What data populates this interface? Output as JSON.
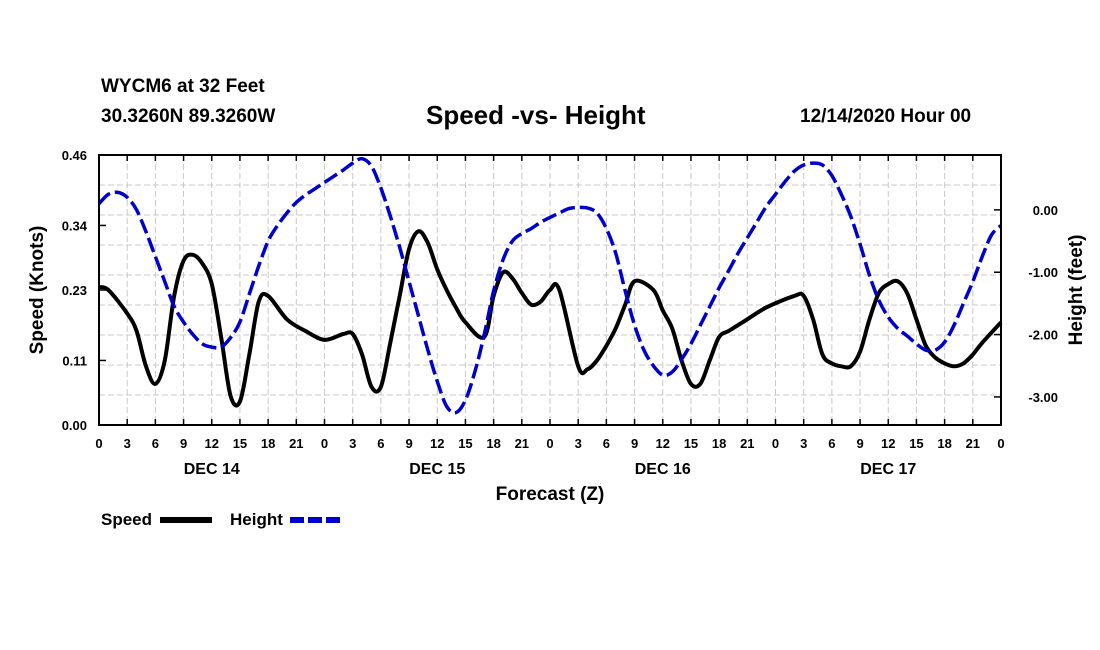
{
  "header": {
    "station": "WYCM6 at 32 Feet",
    "coords": "30.3260N 89.3260W",
    "title": "Speed -vs- Height",
    "datetime": "12/14/2020 Hour 00"
  },
  "chart_data": {
    "type": "line",
    "title": "Speed -vs- Height",
    "xlabel": "Forecast (Z)",
    "ylabel_left": "Speed (Knots)",
    "ylabel_right": "Height (feet)",
    "xlim": [
      0,
      96
    ],
    "ylim_left": [
      0,
      0.46
    ],
    "ylim_right": [
      -3.45,
      0.88
    ],
    "x_tick_labels": [
      "0",
      "3",
      "6",
      "9",
      "12",
      "15",
      "18",
      "21",
      "0",
      "3",
      "6",
      "9",
      "12",
      "15",
      "18",
      "21",
      "0",
      "3",
      "6",
      "9",
      "12",
      "15",
      "18",
      "21",
      "0",
      "3",
      "6",
      "9",
      "12",
      "15",
      "18",
      "21",
      "0"
    ],
    "day_labels": [
      {
        "label": "DEC 14",
        "x": 12
      },
      {
        "label": "DEC 15",
        "x": 36
      },
      {
        "label": "DEC 16",
        "x": 60
      },
      {
        "label": "DEC 17",
        "x": 84
      }
    ],
    "y_left_ticks": [
      "0.00",
      "0.11",
      "0.23",
      "0.34",
      "0.46"
    ],
    "y_left_tick_values": [
      0,
      0.11,
      0.23,
      0.34,
      0.46
    ],
    "y_right_ticks": [
      "-3.00",
      "-2.00",
      "-1.00",
      "0.00"
    ],
    "y_right_tick_values": [
      -3,
      -2,
      -1,
      0
    ],
    "grid": true,
    "legend_position": "bottom-left",
    "series": [
      {
        "name": "Speed",
        "axis": "left",
        "color": "#000000",
        "style": "solid",
        "x": [
          0,
          1,
          3,
          4,
          5,
          6,
          7,
          8,
          9,
          10,
          11,
          12,
          13,
          14,
          15,
          16,
          17,
          18,
          20,
          22,
          24,
          26,
          27,
          28,
          29,
          30,
          31,
          32,
          33,
          34,
          35,
          36,
          37,
          38,
          39,
          41,
          42,
          43,
          44,
          45,
          46,
          47,
          48,
          49,
          51,
          52,
          53,
          54,
          55,
          56,
          57,
          59,
          60,
          61,
          62,
          63,
          64,
          65,
          66,
          67,
          68,
          69,
          71,
          74,
          75,
          76,
          77,
          78,
          79,
          80,
          81,
          82,
          83,
          84,
          85,
          86,
          87,
          88,
          89,
          90,
          91,
          92,
          93,
          94,
          96
        ],
        "values": [
          0.235,
          0.23,
          0.19,
          0.16,
          0.1,
          0.07,
          0.11,
          0.22,
          0.28,
          0.29,
          0.275,
          0.24,
          0.15,
          0.05,
          0.04,
          0.12,
          0.21,
          0.22,
          0.18,
          0.16,
          0.145,
          0.155,
          0.155,
          0.12,
          0.065,
          0.065,
          0.14,
          0.22,
          0.3,
          0.33,
          0.31,
          0.265,
          0.23,
          0.2,
          0.175,
          0.15,
          0.22,
          0.26,
          0.25,
          0.225,
          0.205,
          0.21,
          0.23,
          0.23,
          0.1,
          0.095,
          0.11,
          0.135,
          0.165,
          0.205,
          0.245,
          0.23,
          0.195,
          0.165,
          0.11,
          0.07,
          0.07,
          0.11,
          0.15,
          0.16,
          0.17,
          0.18,
          0.2,
          0.22,
          0.22,
          0.18,
          0.12,
          0.105,
          0.1,
          0.1,
          0.125,
          0.18,
          0.225,
          0.24,
          0.245,
          0.225,
          0.18,
          0.135,
          0.115,
          0.105,
          0.1,
          0.105,
          0.12,
          0.14,
          0.175
        ]
      },
      {
        "name": "Height",
        "axis": "right",
        "color": "#0000cc",
        "style": "dashed",
        "x": [
          0,
          1,
          2,
          3,
          4,
          5,
          6,
          7,
          8,
          9,
          10,
          11,
          12,
          13,
          14,
          15,
          16,
          17,
          18,
          19,
          20,
          21,
          22,
          23,
          24,
          25,
          26,
          27,
          28,
          29,
          30,
          31,
          32,
          33,
          34,
          35,
          36,
          37,
          38,
          39,
          40,
          41,
          42,
          43,
          44,
          45,
          46,
          47,
          48,
          49,
          50,
          51,
          52,
          53,
          54,
          55,
          56,
          57,
          58,
          59,
          60,
          61,
          62,
          63,
          64,
          65,
          66,
          67,
          68,
          69,
          70,
          71,
          72,
          73,
          74,
          75,
          76,
          77,
          78,
          79,
          80,
          81,
          82,
          83,
          84,
          85,
          86,
          87,
          88,
          89,
          90,
          91,
          92,
          93,
          94,
          95,
          96
        ],
        "values": [
          0.1,
          0.25,
          0.28,
          0.2,
          0.0,
          -0.35,
          -0.75,
          -1.15,
          -1.55,
          -1.8,
          -2.0,
          -2.15,
          -2.2,
          -2.2,
          -2.05,
          -1.8,
          -1.35,
          -0.9,
          -0.5,
          -0.25,
          -0.05,
          0.12,
          0.24,
          0.34,
          0.44,
          0.54,
          0.64,
          0.75,
          0.82,
          0.7,
          0.35,
          -0.1,
          -0.6,
          -1.15,
          -1.7,
          -2.25,
          -2.75,
          -3.15,
          -3.25,
          -3.05,
          -2.6,
          -2.0,
          -1.3,
          -0.8,
          -0.5,
          -0.38,
          -0.3,
          -0.2,
          -0.12,
          -0.05,
          0.02,
          0.04,
          0.03,
          -0.05,
          -0.3,
          -0.7,
          -1.3,
          -1.85,
          -2.25,
          -2.5,
          -2.65,
          -2.6,
          -2.4,
          -2.15,
          -1.85,
          -1.55,
          -1.25,
          -0.98,
          -0.7,
          -0.45,
          -0.2,
          0.05,
          0.25,
          0.45,
          0.62,
          0.72,
          0.75,
          0.72,
          0.55,
          0.25,
          -0.1,
          -0.55,
          -1.05,
          -1.45,
          -1.72,
          -1.9,
          -2.02,
          -2.15,
          -2.25,
          -2.25,
          -2.12,
          -1.85,
          -1.5,
          -1.15,
          -0.75,
          -0.4,
          -0.25
        ]
      }
    ]
  },
  "legend": {
    "speed_label": "Speed",
    "height_label": "Height"
  }
}
